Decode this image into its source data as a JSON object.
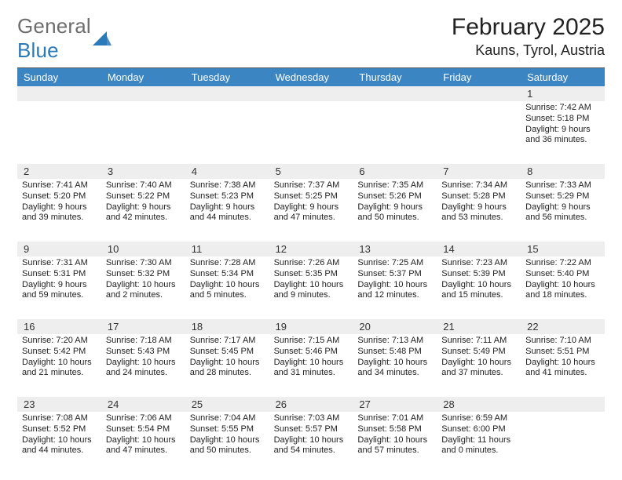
{
  "logo": {
    "general": "General",
    "blue": "Blue"
  },
  "header": {
    "title": "February 2025",
    "location": "Kauns, Tyrol, Austria"
  },
  "colors": {
    "header_bg": "#3b85c3",
    "header_text": "#ffffff",
    "daynum_bg": "#eeeeee",
    "logo_gray": "#6d6d6d",
    "logo_blue": "#2a7aba",
    "divider": "#5a5a5a",
    "body_text": "#222222",
    "background": "#ffffff"
  },
  "typography": {
    "title_fontsize": 30,
    "subtitle_fontsize": 18,
    "weekday_fontsize": 13,
    "daynum_fontsize": 13,
    "cell_fontsize": 11,
    "logo_fontsize": 26
  },
  "layout": {
    "columns": 7,
    "weeks": 5
  },
  "weekdays": [
    "Sunday",
    "Monday",
    "Tuesday",
    "Wednesday",
    "Thursday",
    "Friday",
    "Saturday"
  ],
  "weeks": [
    [
      {
        "day": ""
      },
      {
        "day": ""
      },
      {
        "day": ""
      },
      {
        "day": ""
      },
      {
        "day": ""
      },
      {
        "day": ""
      },
      {
        "day": "1",
        "sunrise": "Sunrise: 7:42 AM",
        "sunset": "Sunset: 5:18 PM",
        "daylight": "Daylight: 9 hours and 36 minutes."
      }
    ],
    [
      {
        "day": "2",
        "sunrise": "Sunrise: 7:41 AM",
        "sunset": "Sunset: 5:20 PM",
        "daylight": "Daylight: 9 hours and 39 minutes."
      },
      {
        "day": "3",
        "sunrise": "Sunrise: 7:40 AM",
        "sunset": "Sunset: 5:22 PM",
        "daylight": "Daylight: 9 hours and 42 minutes."
      },
      {
        "day": "4",
        "sunrise": "Sunrise: 7:38 AM",
        "sunset": "Sunset: 5:23 PM",
        "daylight": "Daylight: 9 hours and 44 minutes."
      },
      {
        "day": "5",
        "sunrise": "Sunrise: 7:37 AM",
        "sunset": "Sunset: 5:25 PM",
        "daylight": "Daylight: 9 hours and 47 minutes."
      },
      {
        "day": "6",
        "sunrise": "Sunrise: 7:35 AM",
        "sunset": "Sunset: 5:26 PM",
        "daylight": "Daylight: 9 hours and 50 minutes."
      },
      {
        "day": "7",
        "sunrise": "Sunrise: 7:34 AM",
        "sunset": "Sunset: 5:28 PM",
        "daylight": "Daylight: 9 hours and 53 minutes."
      },
      {
        "day": "8",
        "sunrise": "Sunrise: 7:33 AM",
        "sunset": "Sunset: 5:29 PM",
        "daylight": "Daylight: 9 hours and 56 minutes."
      }
    ],
    [
      {
        "day": "9",
        "sunrise": "Sunrise: 7:31 AM",
        "sunset": "Sunset: 5:31 PM",
        "daylight": "Daylight: 9 hours and 59 minutes."
      },
      {
        "day": "10",
        "sunrise": "Sunrise: 7:30 AM",
        "sunset": "Sunset: 5:32 PM",
        "daylight": "Daylight: 10 hours and 2 minutes."
      },
      {
        "day": "11",
        "sunrise": "Sunrise: 7:28 AM",
        "sunset": "Sunset: 5:34 PM",
        "daylight": "Daylight: 10 hours and 5 minutes."
      },
      {
        "day": "12",
        "sunrise": "Sunrise: 7:26 AM",
        "sunset": "Sunset: 5:35 PM",
        "daylight": "Daylight: 10 hours and 9 minutes."
      },
      {
        "day": "13",
        "sunrise": "Sunrise: 7:25 AM",
        "sunset": "Sunset: 5:37 PM",
        "daylight": "Daylight: 10 hours and 12 minutes."
      },
      {
        "day": "14",
        "sunrise": "Sunrise: 7:23 AM",
        "sunset": "Sunset: 5:39 PM",
        "daylight": "Daylight: 10 hours and 15 minutes."
      },
      {
        "day": "15",
        "sunrise": "Sunrise: 7:22 AM",
        "sunset": "Sunset: 5:40 PM",
        "daylight": "Daylight: 10 hours and 18 minutes."
      }
    ],
    [
      {
        "day": "16",
        "sunrise": "Sunrise: 7:20 AM",
        "sunset": "Sunset: 5:42 PM",
        "daylight": "Daylight: 10 hours and 21 minutes."
      },
      {
        "day": "17",
        "sunrise": "Sunrise: 7:18 AM",
        "sunset": "Sunset: 5:43 PM",
        "daylight": "Daylight: 10 hours and 24 minutes."
      },
      {
        "day": "18",
        "sunrise": "Sunrise: 7:17 AM",
        "sunset": "Sunset: 5:45 PM",
        "daylight": "Daylight: 10 hours and 28 minutes."
      },
      {
        "day": "19",
        "sunrise": "Sunrise: 7:15 AM",
        "sunset": "Sunset: 5:46 PM",
        "daylight": "Daylight: 10 hours and 31 minutes."
      },
      {
        "day": "20",
        "sunrise": "Sunrise: 7:13 AM",
        "sunset": "Sunset: 5:48 PM",
        "daylight": "Daylight: 10 hours and 34 minutes."
      },
      {
        "day": "21",
        "sunrise": "Sunrise: 7:11 AM",
        "sunset": "Sunset: 5:49 PM",
        "daylight": "Daylight: 10 hours and 37 minutes."
      },
      {
        "day": "22",
        "sunrise": "Sunrise: 7:10 AM",
        "sunset": "Sunset: 5:51 PM",
        "daylight": "Daylight: 10 hours and 41 minutes."
      }
    ],
    [
      {
        "day": "23",
        "sunrise": "Sunrise: 7:08 AM",
        "sunset": "Sunset: 5:52 PM",
        "daylight": "Daylight: 10 hours and 44 minutes."
      },
      {
        "day": "24",
        "sunrise": "Sunrise: 7:06 AM",
        "sunset": "Sunset: 5:54 PM",
        "daylight": "Daylight: 10 hours and 47 minutes."
      },
      {
        "day": "25",
        "sunrise": "Sunrise: 7:04 AM",
        "sunset": "Sunset: 5:55 PM",
        "daylight": "Daylight: 10 hours and 50 minutes."
      },
      {
        "day": "26",
        "sunrise": "Sunrise: 7:03 AM",
        "sunset": "Sunset: 5:57 PM",
        "daylight": "Daylight: 10 hours and 54 minutes."
      },
      {
        "day": "27",
        "sunrise": "Sunrise: 7:01 AM",
        "sunset": "Sunset: 5:58 PM",
        "daylight": "Daylight: 10 hours and 57 minutes."
      },
      {
        "day": "28",
        "sunrise": "Sunrise: 6:59 AM",
        "sunset": "Sunset: 6:00 PM",
        "daylight": "Daylight: 11 hours and 0 minutes."
      },
      {
        "day": ""
      }
    ]
  ]
}
